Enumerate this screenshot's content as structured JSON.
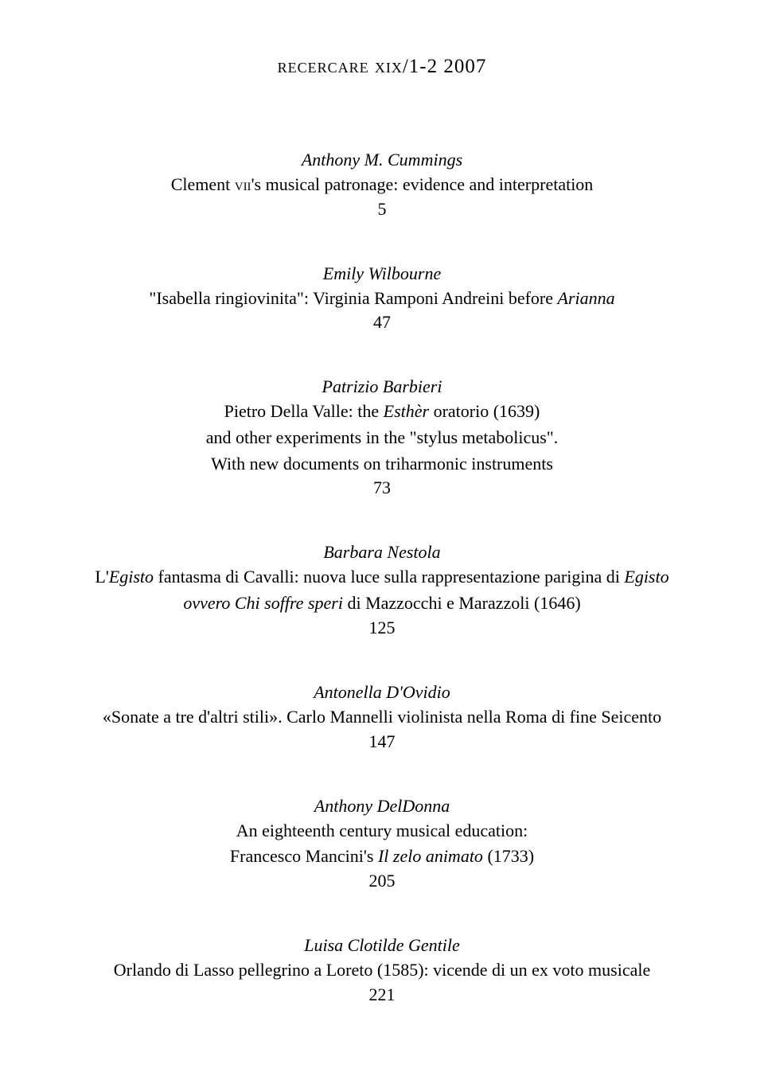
{
  "header": {
    "sc": "recercare xix",
    "rest": "/1-2 2007"
  },
  "entries": [
    {
      "author": "Anthony M. Cummings",
      "title_lines": [
        {
          "prefix": "Clement ",
          "sc": "vii",
          "suffix": "'s musical patronage: evidence and interpretation"
        }
      ],
      "page": "5"
    },
    {
      "author": "Emily Wilbourne",
      "title_lines": [
        {
          "text_before": "\"Isabella ringiovinita\": Virginia Ramponi Andreini before ",
          "italic_after": "Arianna"
        }
      ],
      "page": "47"
    },
    {
      "author": "Patrizio Barbieri",
      "title_lines": [
        {
          "text_before": "Pietro Della Valle: the ",
          "italic_mid": "Esthèr",
          "text_after": " oratorio (1639)"
        },
        {
          "plain": "and other experiments in the \"stylus metabolicus\"."
        },
        {
          "plain": "With new documents on triharmonic instruments"
        }
      ],
      "page": "73"
    },
    {
      "author": "Barbara Nestola",
      "title_lines": [
        {
          "text_before": "L'",
          "italic_mid": "Egisto",
          "text_after": " fantasma di Cavalli: nuova luce sulla rappresentazione parigina di ",
          "italic_after": "Egisto"
        },
        {
          "italic_before": "ovvero Chi soffre speri",
          "text_after": " di Mazzocchi e Marazzoli (1646)"
        }
      ],
      "page": "125"
    },
    {
      "author": "Antonella D'Ovidio",
      "title_lines": [
        {
          "plain": "«Sonate a tre d'altri stili». Carlo Mannelli violinista nella Roma di fine Seicento"
        }
      ],
      "page": "147"
    },
    {
      "author": "Anthony DelDonna",
      "title_lines": [
        {
          "plain": "An eighteenth century musical education:"
        },
        {
          "text_before": "Francesco Mancini's ",
          "italic_mid": "Il zelo animato",
          "text_after": " (1733)"
        }
      ],
      "page": "205"
    },
    {
      "author": "Luisa Clotilde Gentile",
      "title_lines": [
        {
          "plain": "Orlando di Lasso pellegrino a Loreto (1585): vicende di un ex voto musicale"
        }
      ],
      "page": "221"
    }
  ]
}
